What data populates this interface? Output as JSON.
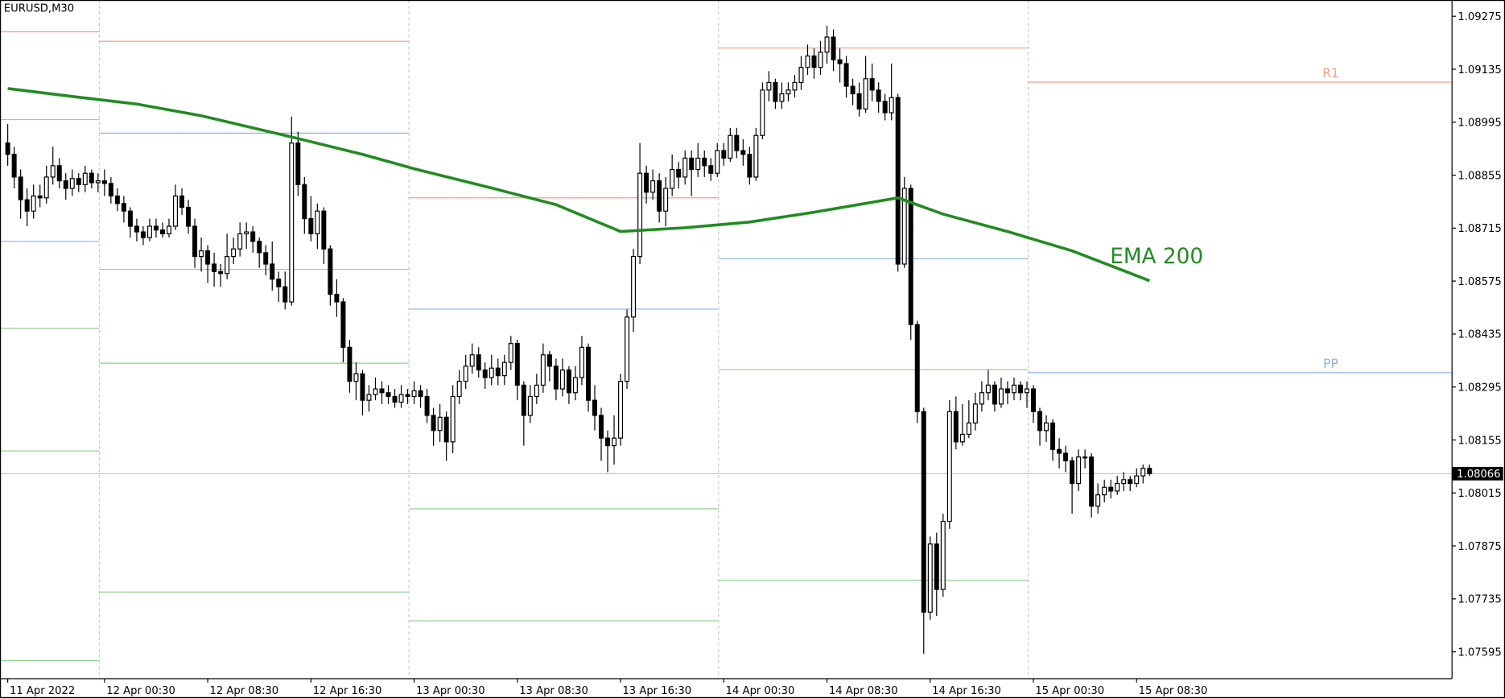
{
  "chart_data": {
    "type": "candlestick",
    "title": "EURUSD,M30",
    "up_color": "#ffffff",
    "down_color": "#000000",
    "grid": false,
    "xlim": [
      -1.2,
      223.9
    ],
    "ylim": [
      1.07524,
      1.09318
    ],
    "yticks": [
      1.09275,
      1.09135,
      1.08995,
      1.08855,
      1.08715,
      1.08575,
      1.08435,
      1.08295,
      1.08155,
      1.08015,
      1.07875,
      1.07735,
      1.07595
    ],
    "xticks": [
      {
        "value": 0,
        "label": "11 Apr 2022"
      },
      {
        "value": 15,
        "label": "12 Apr 00:30"
      },
      {
        "value": 31,
        "label": "12 Apr 08:30"
      },
      {
        "value": 47,
        "label": "12 Apr 16:30"
      },
      {
        "value": 63,
        "label": "13 Apr 00:30"
      },
      {
        "value": 79,
        "label": "13 Apr 08:30"
      },
      {
        "value": 95,
        "label": "13 Apr 16:30"
      },
      {
        "value": 111,
        "label": "14 Apr 00:30"
      },
      {
        "value": 127,
        "label": "14 Apr 08:30"
      },
      {
        "value": 143,
        "label": "14 Apr 16:30"
      },
      {
        "value": 159,
        "label": "15 Apr 00:30"
      },
      {
        "value": 175,
        "label": "15 Apr 08:30"
      }
    ],
    "open": [
      1.0894,
      1.0891,
      1.0885,
      1.0879,
      1.0876,
      1.088,
      1.08795,
      1.0885,
      1.0888,
      1.0884,
      1.0882,
      1.08846,
      1.0883,
      1.0886,
      1.08835,
      1.0884,
      1.08833,
      1.088,
      1.0878,
      1.0876,
      1.0872,
      1.08705,
      1.0869,
      1.0872,
      1.0871,
      1.087,
      1.0872,
      1.088,
      1.0877,
      1.0872,
      1.0864,
      1.08655,
      1.0862,
      1.086,
      1.08595,
      1.0864,
      1.0866,
      1.087,
      1.08705,
      1.0868,
      1.0865,
      1.0862,
      1.0858,
      1.0856,
      1.0852,
      1.0894,
      1.0883,
      1.0874,
      1.087,
      1.0876,
      1.0866,
      1.0854,
      1.0852,
      1.084,
      1.0831,
      1.0833,
      1.0826,
      1.08275,
      1.0829,
      1.0828,
      1.0827,
      1.08255,
      1.08275,
      1.0827,
      1.08285,
      1.0827,
      1.0822,
      1.0818,
      1.08215,
      1.0815,
      1.0827,
      1.0831,
      1.0835,
      1.0838,
      1.0834,
      1.0832,
      1.08345,
      1.08325,
      1.0836,
      1.0841,
      1.083,
      1.0822,
      1.0827,
      1.083,
      1.0838,
      1.0835,
      1.0829,
      1.0834,
      1.0828,
      1.0832,
      1.084,
      1.0826,
      1.0822,
      1.0816,
      1.0814,
      1.0816,
      1.0831,
      1.0848,
      1.0864,
      1.0886,
      1.0881,
      1.0884,
      1.0876,
      1.0882,
      1.0887,
      1.0885,
      1.089,
      1.0887,
      1.089,
      1.0888,
      1.0886,
      1.0892,
      1.089,
      1.0896,
      1.0892,
      1.0891,
      1.0885,
      1.0896,
      1.0908,
      1.091,
      1.0905,
      1.0907,
      1.0908,
      1.091,
      1.0914,
      1.0917,
      1.0914,
      1.0918,
      1.0922,
      1.0916,
      1.0915,
      1.0909,
      1.0907,
      1.0903,
      1.0911,
      1.0908,
      1.0905,
      1.0902,
      1.0906,
      1.0862,
      1.0882,
      1.0846,
      1.0823,
      1.077,
      1.0788,
      1.0776,
      1.0794,
      1.0823,
      1.0815,
      1.0817,
      1.082,
      1.0825,
      1.0828,
      1.083,
      1.0825,
      1.0829,
      1.0828,
      1.083,
      1.0828,
      1.0829,
      1.0823,
      1.0818,
      1.082,
      1.0813,
      1.0812,
      1.081,
      1.0804,
      1.0811,
      1.0811,
      1.0798,
      1.0801,
      1.0803,
      1.0802,
      1.0804,
      1.0805,
      1.0804,
      1.0806,
      1.0808
    ],
    "high": [
      1.0899,
      1.0893,
      1.0887,
      1.0882,
      1.0883,
      1.0883,
      1.0888,
      1.0893,
      1.089,
      1.0886,
      1.0887,
      1.0886,
      1.0888,
      1.0887,
      1.0886,
      1.0887,
      1.0885,
      1.0882,
      1.088,
      1.0877,
      1.0874,
      1.0872,
      1.0874,
      1.0874,
      1.0873,
      1.0874,
      1.0883,
      1.0882,
      1.0879,
      1.0874,
      1.0869,
      1.0867,
      1.0865,
      1.0862,
      1.087,
      1.0869,
      1.0873,
      1.0873,
      1.0872,
      1.0869,
      1.0867,
      1.0868,
      1.086,
      1.086,
      1.0901,
      1.0897,
      1.0885,
      1.088,
      1.0878,
      1.0877,
      1.0867,
      1.0858,
      1.0853,
      1.0842,
      1.0836,
      1.0834,
      1.083,
      1.0832,
      1.0831,
      1.083,
      1.0829,
      1.083,
      1.0829,
      1.0831,
      1.083,
      1.0829,
      1.0824,
      1.0825,
      1.0823,
      1.083,
      1.0834,
      1.0838,
      1.0841,
      1.084,
      1.0836,
      1.0838,
      1.0837,
      1.0838,
      1.0843,
      1.0842,
      1.0831,
      1.083,
      1.0833,
      1.0841,
      1.0839,
      1.0837,
      1.0837,
      1.0835,
      1.0835,
      1.0843,
      1.0841,
      1.083,
      1.0824,
      1.0818,
      1.0822,
      1.0833,
      1.085,
      1.0866,
      1.0894,
      1.0888,
      1.0887,
      1.0886,
      1.0885,
      1.0891,
      1.0889,
      1.0892,
      1.0892,
      1.0894,
      1.0892,
      1.089,
      1.0894,
      1.0894,
      1.0898,
      1.0898,
      1.0895,
      1.0893,
      1.0898,
      1.091,
      1.0913,
      1.0911,
      1.091,
      1.091,
      1.0912,
      1.0917,
      1.092,
      1.0919,
      1.0921,
      1.0925,
      1.0924,
      1.0919,
      1.0917,
      1.0911,
      1.091,
      1.0917,
      1.0915,
      1.091,
      1.0907,
      1.0915,
      1.0907,
      1.0885,
      1.0883,
      1.0847,
      1.0824,
      1.079,
      1.0791,
      1.0796,
      1.0826,
      1.0827,
      1.0825,
      1.0826,
      1.0828,
      1.0831,
      1.0834,
      1.0831,
      1.0832,
      1.0831,
      1.0832,
      1.0831,
      1.0831,
      1.083,
      1.0824,
      1.0822,
      1.0821,
      1.0816,
      1.0814,
      1.0811,
      1.0813,
      1.0813,
      1.0812,
      1.0804,
      1.0805,
      1.0805,
      1.0806,
      1.0807,
      1.0806,
      1.0808,
      1.0809,
      1.0809
    ],
    "low": [
      1.0888,
      1.0882,
      1.0874,
      1.0872,
      1.0874,
      1.0877,
      1.0878,
      1.0883,
      1.0882,
      1.0879,
      1.088,
      1.0881,
      1.0881,
      1.0882,
      1.0881,
      1.088,
      1.0878,
      1.0876,
      1.0873,
      1.0869,
      1.0868,
      1.0867,
      1.0868,
      1.0869,
      1.0869,
      1.0869,
      1.0871,
      1.0875,
      1.087,
      1.0861,
      1.086,
      1.0857,
      1.0856,
      1.0856,
      1.0858,
      1.0862,
      1.0864,
      1.0866,
      1.0865,
      1.0861,
      1.0859,
      1.0855,
      1.0852,
      1.085,
      1.0851,
      1.088,
      1.087,
      1.0868,
      1.0866,
      1.0862,
      1.0851,
      1.0848,
      1.0836,
      1.0828,
      1.0826,
      1.0822,
      1.0823,
      1.0826,
      1.0825,
      1.0825,
      1.0824,
      1.0824,
      1.0825,
      1.0825,
      1.0824,
      1.082,
      1.0814,
      1.0815,
      1.081,
      1.0812,
      1.0825,
      1.0829,
      1.0833,
      1.0832,
      1.0829,
      1.083,
      1.083,
      1.083,
      1.0834,
      1.0826,
      1.0814,
      1.082,
      1.0825,
      1.0828,
      1.0831,
      1.0826,
      1.0827,
      1.0825,
      1.0826,
      1.083,
      1.0823,
      1.0818,
      1.081,
      1.0807,
      1.0809,
      1.0814,
      1.0829,
      1.0844,
      1.0862,
      1.0878,
      1.0879,
      1.0873,
      1.0872,
      1.088,
      1.0882,
      1.0883,
      1.088,
      1.0885,
      1.0885,
      1.0884,
      1.0885,
      1.0888,
      1.0889,
      1.089,
      1.0888,
      1.0883,
      1.0884,
      1.0895,
      1.0905,
      1.0903,
      1.0903,
      1.0905,
      1.0906,
      1.0908,
      1.0912,
      1.0911,
      1.0912,
      1.0915,
      1.0913,
      1.091,
      1.0906,
      1.0904,
      1.0901,
      1.0902,
      1.0905,
      1.0902,
      1.09,
      1.09,
      1.086,
      1.0861,
      1.0842,
      1.082,
      1.0759,
      1.0768,
      1.0769,
      1.0774,
      1.0792,
      1.0813,
      1.0814,
      1.0816,
      1.0818,
      1.0823,
      1.0826,
      1.0823,
      1.0824,
      1.0825,
      1.0826,
      1.0826,
      1.0824,
      1.082,
      1.0814,
      1.0815,
      1.081,
      1.0808,
      1.0807,
      1.0796,
      1.0802,
      1.0808,
      1.0795,
      1.0796,
      1.0799,
      1.08,
      1.0801,
      1.0802,
      1.0802,
      1.0803,
      1.0804,
      1.0806
    ],
    "close": [
      1.0891,
      1.0885,
      1.0879,
      1.0876,
      1.088,
      1.08795,
      1.0885,
      1.0888,
      1.0884,
      1.0882,
      1.08846,
      1.0883,
      1.0886,
      1.08835,
      1.0884,
      1.08833,
      1.088,
      1.0878,
      1.0876,
      1.0872,
      1.08705,
      1.0869,
      1.0872,
      1.0871,
      1.087,
      1.0872,
      1.088,
      1.0877,
      1.0872,
      1.0864,
      1.08655,
      1.0862,
      1.086,
      1.08595,
      1.0864,
      1.0866,
      1.087,
      1.08705,
      1.0868,
      1.0865,
      1.0862,
      1.0858,
      1.0856,
      1.0852,
      1.0894,
      1.0883,
      1.0874,
      1.087,
      1.0876,
      1.0866,
      1.0854,
      1.0852,
      1.084,
      1.0831,
      1.0833,
      1.0826,
      1.08275,
      1.0829,
      1.0828,
      1.0827,
      1.08255,
      1.08275,
      1.0827,
      1.08285,
      1.0827,
      1.0822,
      1.0818,
      1.08215,
      1.0815,
      1.0827,
      1.0831,
      1.0835,
      1.0838,
      1.0834,
      1.0832,
      1.08345,
      1.08325,
      1.0836,
      1.0841,
      1.083,
      1.0822,
      1.0827,
      1.083,
      1.0838,
      1.0835,
      1.0829,
      1.0834,
      1.0828,
      1.0832,
      1.084,
      1.0826,
      1.0822,
      1.0816,
      1.0814,
      1.0816,
      1.0831,
      1.0848,
      1.0864,
      1.0886,
      1.0881,
      1.0884,
      1.0876,
      1.0882,
      1.0887,
      1.0885,
      1.089,
      1.0887,
      1.089,
      1.0888,
      1.0886,
      1.0892,
      1.089,
      1.0896,
      1.0892,
      1.0891,
      1.0885,
      1.0896,
      1.0908,
      1.091,
      1.0905,
      1.0907,
      1.0908,
      1.091,
      1.0914,
      1.0917,
      1.0914,
      1.0918,
      1.0922,
      1.0916,
      1.0915,
      1.0909,
      1.0907,
      1.0903,
      1.0911,
      1.0908,
      1.0905,
      1.0902,
      1.0906,
      1.0862,
      1.0882,
      1.0846,
      1.0823,
      1.077,
      1.0788,
      1.0776,
      1.0794,
      1.0823,
      1.0815,
      1.0817,
      1.082,
      1.0825,
      1.0828,
      1.083,
      1.0825,
      1.0829,
      1.0828,
      1.083,
      1.0828,
      1.0829,
      1.0823,
      1.0818,
      1.082,
      1.0813,
      1.0812,
      1.081,
      1.0804,
      1.0811,
      1.0811,
      1.0798,
      1.0801,
      1.0803,
      1.0802,
      1.0804,
      1.0805,
      1.0804,
      1.0806,
      1.0808,
      1.08066
    ],
    "ema": {
      "name": "EMA 200",
      "color": "#228b22",
      "x": [
        0,
        10,
        20,
        30,
        44,
        55,
        63,
        75,
        85,
        95,
        105,
        115,
        125,
        138,
        145,
        155,
        165,
        177
      ],
      "values": [
        1.09084,
        1.09063,
        1.09043,
        1.09012,
        1.08956,
        1.0891,
        1.08872,
        1.08821,
        1.08777,
        1.08706,
        1.08716,
        1.08731,
        1.08757,
        1.08795,
        1.08752,
        1.08706,
        1.08655,
        1.08576
      ]
    },
    "current_price": 1.08066,
    "sessions": [
      {
        "start": null,
        "end": 14.2,
        "levels": [
          {
            "value": 1.09234,
            "color": "#f4a08a"
          },
          {
            "value": 1.09002,
            "color": "#f0a0b8"
          },
          {
            "value": 1.0868,
            "color": "#8fb2e0"
          },
          {
            "value": 1.0845,
            "color": "#8fd18f"
          },
          {
            "value": 1.08126,
            "color": "#8fd18f"
          },
          {
            "value": 1.07572,
            "color": "#8fd18f"
          }
        ]
      },
      {
        "start": 14.2,
        "end": 62.2,
        "levels": [
          {
            "value": 1.09209,
            "color": "#f4a08a"
          },
          {
            "value": 1.08966,
            "color": "#8fb2e0"
          },
          {
            "value": 1.08606,
            "color": "#8fd18f"
          },
          {
            "value": 1.08358,
            "color": "#8fd18f"
          },
          {
            "value": 1.07753,
            "color": "#8fd18f"
          }
        ]
      },
      {
        "start": 62.2,
        "end": 110.2,
        "levels": [
          {
            "value": 1.08795,
            "color": "#f4a08a"
          },
          {
            "value": 1.08501,
            "color": "#8fb2e0"
          },
          {
            "value": 1.07973,
            "color": "#8fd18f"
          },
          {
            "value": 1.07677,
            "color": "#8fd18f"
          }
        ]
      },
      {
        "start": 110.2,
        "end": 158.2,
        "levels": [
          {
            "value": 1.09191,
            "color": "#f4a08a"
          },
          {
            "value": 1.08634,
            "color": "#8fb2e0"
          },
          {
            "value": 1.08341,
            "color": "#8fd18f"
          },
          {
            "value": 1.07784,
            "color": "#8fd18f"
          }
        ]
      },
      {
        "start": 158.2,
        "end": null,
        "levels": [
          {
            "value": 1.09101,
            "color": "#f4a08a",
            "label": "R1"
          },
          {
            "value": 1.08333,
            "color": "#8fb2e0",
            "label": "PP"
          }
        ]
      }
    ]
  }
}
